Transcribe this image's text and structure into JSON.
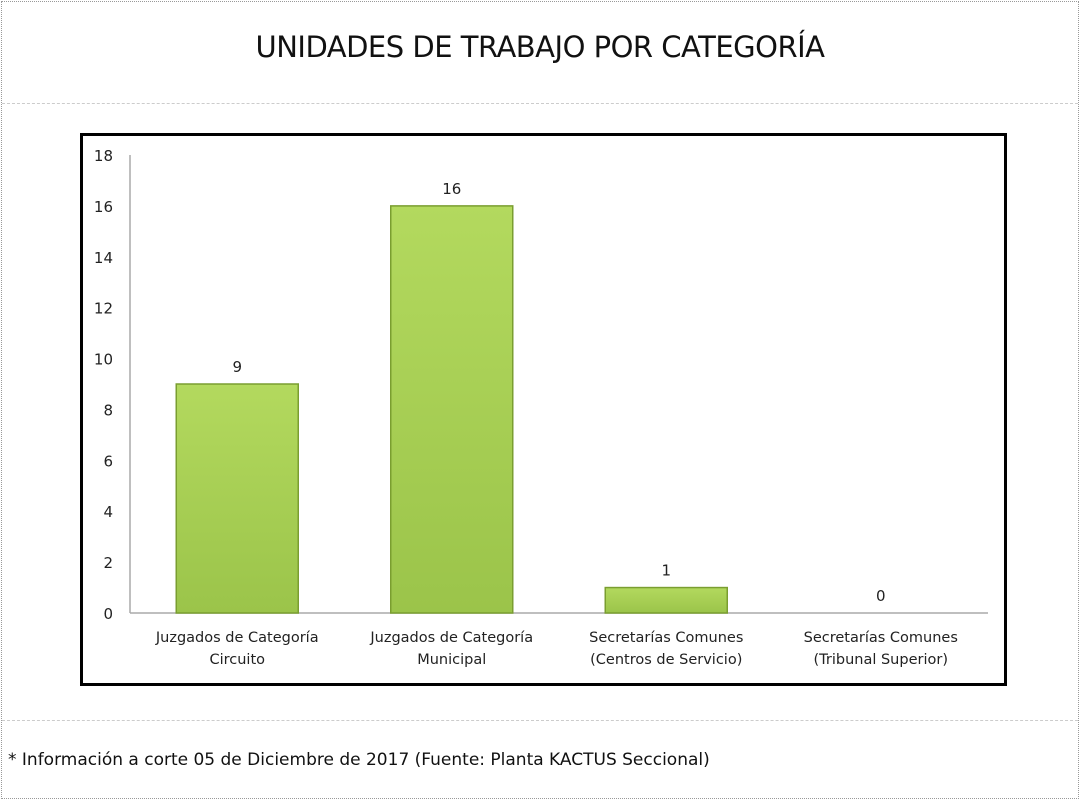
{
  "title": "UNIDADES DE TRABAJO POR CATEGORÍA",
  "footnote": "* Información a corte 05 de Diciembre de 2017 (Fuente: Planta KACTUS Seccional)",
  "chart_data": {
    "type": "bar",
    "title": "UNIDADES DE TRABAJO POR CATEGORÍA",
    "categories": [
      [
        "Juzgados de Categoría",
        "Circuito"
      ],
      [
        "Juzgados de Categoría",
        "Municipal"
      ],
      [
        "Secretarías Comunes",
        "(Centros de Servicio)"
      ],
      [
        "Secretarías Comunes",
        "(Tribunal Superior)"
      ]
    ],
    "values": [
      9,
      16,
      1,
      0
    ],
    "data_labels": [
      "9",
      "16",
      "1",
      "0"
    ],
    "ylim": [
      0,
      18
    ],
    "yticks": [
      0,
      2,
      4,
      6,
      8,
      10,
      12,
      14,
      16,
      18
    ],
    "grid": false,
    "legend": "none",
    "xlabel": "",
    "ylabel": "",
    "colors": {
      "bar": "#9bc44a",
      "bar_light": "#b3d95e",
      "bar_edge": "#7a9e30"
    }
  }
}
